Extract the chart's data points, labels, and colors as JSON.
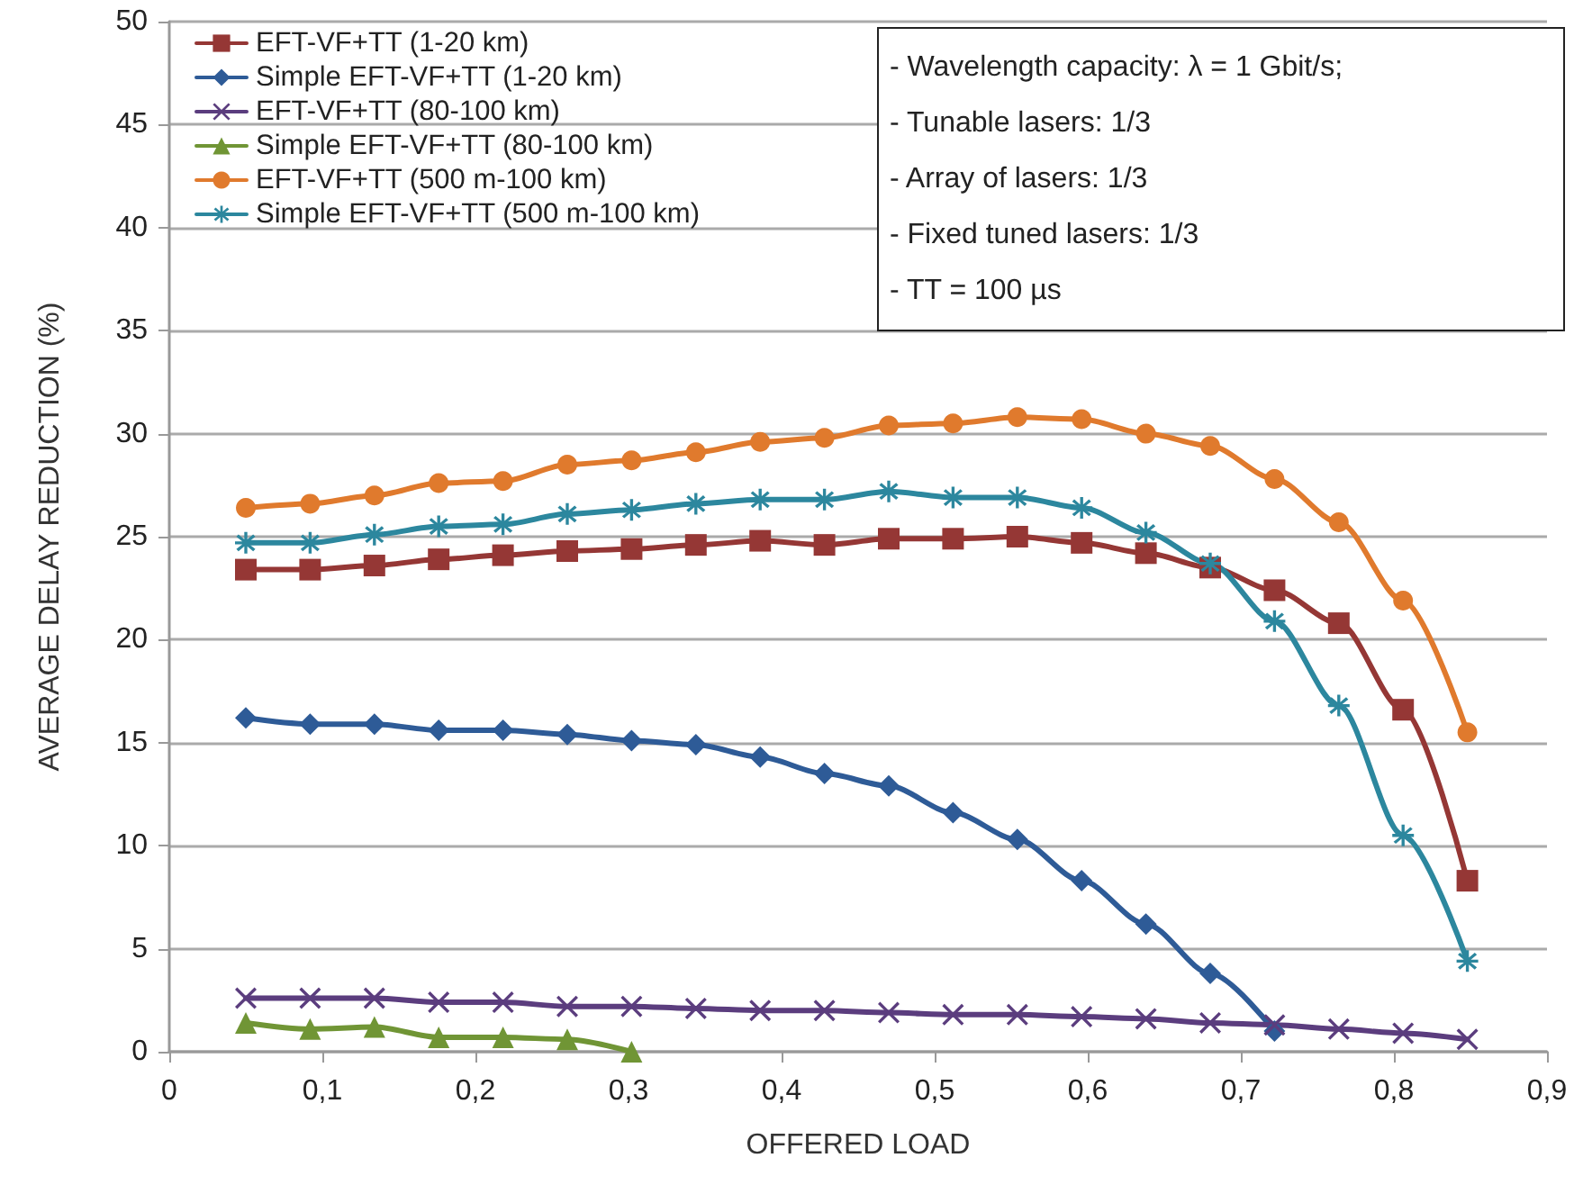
{
  "chart_data": {
    "type": "line",
    "xlabel": "OFFERED LOAD",
    "ylabel": "AVERAGE DELAY REDUCTION (%)",
    "x": [
      0.05,
      0.092,
      0.134,
      0.176,
      0.218,
      0.26,
      0.302,
      0.344,
      0.386,
      0.428,
      0.47,
      0.512,
      0.554,
      0.596,
      0.638,
      0.68,
      0.722,
      0.764,
      0.806,
      0.848
    ],
    "series": [
      {
        "name": "EFT-VF+TT (1-20 km)",
        "color": "#953735",
        "marker": "square",
        "values": [
          23.4,
          23.4,
          23.6,
          23.9,
          24.1,
          24.3,
          24.4,
          24.6,
          24.8,
          24.6,
          24.9,
          24.9,
          25.0,
          24.7,
          24.2,
          23.5,
          22.4,
          20.8,
          16.6,
          8.3
        ]
      },
      {
        "name": "Simple EFT-VF+TT (1-20 km)",
        "color": "#2e5b97",
        "marker": "diamond",
        "values": [
          16.2,
          15.9,
          15.9,
          15.6,
          15.6,
          15.4,
          15.1,
          14.9,
          14.3,
          13.5,
          12.9,
          11.6,
          10.3,
          8.3,
          6.2,
          3.8,
          1.0,
          null,
          null,
          null
        ]
      },
      {
        "name": "EFT-VF+TT (80-100 km)",
        "color": "#5b3d7e",
        "marker": "cross",
        "values": [
          2.6,
          2.6,
          2.6,
          2.4,
          2.4,
          2.2,
          2.2,
          2.1,
          2.0,
          2.0,
          1.9,
          1.8,
          1.8,
          1.7,
          1.6,
          1.4,
          1.3,
          1.1,
          0.9,
          0.6
        ]
      },
      {
        "name": "Simple EFT-VF+TT (80-100 km)",
        "color": "#709535",
        "marker": "triangle",
        "values": [
          1.4,
          1.1,
          1.2,
          0.7,
          0.7,
          0.6,
          0,
          null,
          null,
          null,
          null,
          null,
          null,
          null,
          null,
          null,
          null,
          null,
          null,
          null
        ]
      },
      {
        "name": "EFT-VF+TT (500 m-100 km)",
        "color": "#e07a2d",
        "marker": "circle",
        "values": [
          26.4,
          26.6,
          27.0,
          27.6,
          27.7,
          28.5,
          28.7,
          29.1,
          29.6,
          29.8,
          30.4,
          30.5,
          30.8,
          30.7,
          30.0,
          29.4,
          27.8,
          25.7,
          21.9,
          15.5
        ]
      },
      {
        "name": "Simple EFT-VF+TT (500 m-100 km)",
        "color": "#2c879e",
        "marker": "star",
        "values": [
          24.7,
          24.7,
          25.1,
          25.5,
          25.6,
          26.1,
          26.3,
          26.6,
          26.8,
          26.8,
          27.2,
          26.9,
          26.9,
          26.4,
          25.2,
          23.7,
          20.9,
          16.8,
          10.5,
          4.4
        ]
      }
    ],
    "xlim": [
      0,
      0.9
    ],
    "xticks": [
      0,
      {
        "value": 0.1,
        "label": "0,1"
      },
      {
        "value": 0.2,
        "label": "0,2"
      },
      {
        "value": 0.3,
        "label": "0,3"
      },
      {
        "value": 0.4,
        "label": "0,4"
      },
      {
        "value": 0.5,
        "label": "0,5"
      },
      {
        "value": 0.6,
        "label": "0,6"
      },
      {
        "value": 0.7,
        "label": "0,7"
      },
      {
        "value": 0.8,
        "label": "0,8"
      },
      {
        "value": 0.9,
        "label": "0,9"
      }
    ],
    "ylim": [
      0,
      50
    ],
    "yticks": [
      0,
      5,
      10,
      15,
      20,
      25,
      30,
      35,
      40,
      45,
      50
    ],
    "grid": "y",
    "legend": "top left",
    "line_style": "solid",
    "annotations": [
      "- Wavelength capacity: λ = 1 Gbit/s;",
      "- Tunable lasers: 1/3",
      "- Array of lasers: 1/3",
      "- Fixed tuned lasers: 1/3",
      "- TT = 100 µs"
    ]
  }
}
